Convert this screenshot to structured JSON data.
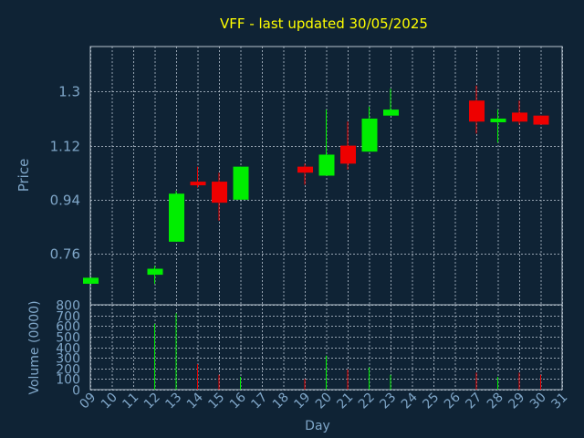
{
  "chart_data": {
    "type": "candlestick",
    "title": "VFF - last updated 30/05/2025",
    "xlabel": "Day",
    "colors": {
      "background": "#0f2335",
      "title": "#ffff00",
      "axis_text": "#7fa6c8",
      "grid": "#b8c4d0",
      "up": "#00ee00",
      "down": "#ee0000"
    },
    "x_ticks": [
      "09",
      "10",
      "11",
      "12",
      "13",
      "14",
      "15",
      "16",
      "17",
      "18",
      "19",
      "20",
      "21",
      "22",
      "23",
      "24",
      "25",
      "26",
      "27",
      "28",
      "29",
      "30",
      "31"
    ],
    "grid": true,
    "price": {
      "ylabel": "Price",
      "y_ticks": [
        "0.76",
        "0.94",
        "1.12",
        "1.3"
      ],
      "ylim": [
        0.59,
        1.45
      ],
      "candles": [
        {
          "day": 9,
          "open": 0.66,
          "close": 0.68,
          "high": 0.68,
          "low": 0.66
        },
        {
          "day": 12,
          "open": 0.69,
          "close": 0.71,
          "high": 0.72,
          "low": 0.66
        },
        {
          "day": 13,
          "open": 0.8,
          "close": 0.96,
          "high": 0.97,
          "low": 0.8
        },
        {
          "day": 14,
          "open": 1.0,
          "close": 0.99,
          "high": 1.05,
          "low": 0.98
        },
        {
          "day": 15,
          "open": 1.0,
          "close": 0.93,
          "high": 1.03,
          "low": 0.87
        },
        {
          "day": 16,
          "open": 0.94,
          "close": 1.05,
          "high": 1.05,
          "low": 0.94
        },
        {
          "day": 19,
          "open": 1.05,
          "close": 1.03,
          "high": 1.06,
          "low": 0.99
        },
        {
          "day": 20,
          "open": 1.02,
          "close": 1.09,
          "high": 1.24,
          "low": 1.02
        },
        {
          "day": 21,
          "open": 1.12,
          "close": 1.06,
          "high": 1.2,
          "low": 1.04
        },
        {
          "day": 22,
          "open": 1.1,
          "close": 1.21,
          "high": 1.25,
          "low": 1.1
        },
        {
          "day": 23,
          "open": 1.22,
          "close": 1.24,
          "high": 1.31,
          "low": 1.22
        },
        {
          "day": 27,
          "open": 1.27,
          "close": 1.2,
          "high": 1.32,
          "low": 1.16
        },
        {
          "day": 28,
          "open": 1.2,
          "close": 1.21,
          "high": 1.24,
          "low": 1.13
        },
        {
          "day": 29,
          "open": 1.23,
          "close": 1.2,
          "high": 1.27,
          "low": 1.19
        },
        {
          "day": 30,
          "open": 1.22,
          "close": 1.19,
          "high": 1.22,
          "low": 1.19
        }
      ]
    },
    "volume": {
      "ylabel": "Volume (0000)",
      "y_ticks": [
        "0",
        "100",
        "200",
        "300",
        "400",
        "500",
        "600",
        "700",
        "800"
      ],
      "ylim": [
        0,
        800
      ],
      "bars": [
        {
          "day": 12,
          "value": 620,
          "dir": "up"
        },
        {
          "day": 13,
          "value": 720,
          "dir": "up"
        },
        {
          "day": 14,
          "value": 240,
          "dir": "down"
        },
        {
          "day": 15,
          "value": 140,
          "dir": "down"
        },
        {
          "day": 16,
          "value": 120,
          "dir": "up"
        },
        {
          "day": 19,
          "value": 100,
          "dir": "down"
        },
        {
          "day": 20,
          "value": 320,
          "dir": "up"
        },
        {
          "day": 21,
          "value": 190,
          "dir": "down"
        },
        {
          "day": 22,
          "value": 210,
          "dir": "up"
        },
        {
          "day": 23,
          "value": 140,
          "dir": "up"
        },
        {
          "day": 27,
          "value": 160,
          "dir": "down"
        },
        {
          "day": 28,
          "value": 120,
          "dir": "up"
        },
        {
          "day": 29,
          "value": 160,
          "dir": "down"
        },
        {
          "day": 30,
          "value": 140,
          "dir": "down"
        }
      ]
    }
  }
}
